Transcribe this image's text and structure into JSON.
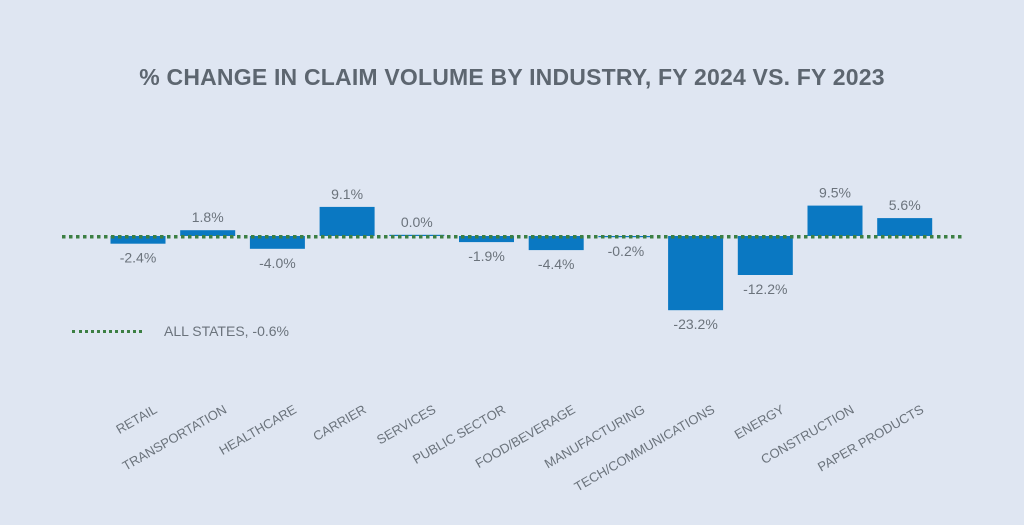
{
  "chart_data": {
    "type": "bar",
    "title": "% CHANGE IN CLAIM VOLUME BY INDUSTRY, FY 2024 VS. FY 2023",
    "categories": [
      "RETAIL",
      "TRANSPORTATION",
      "HEALTHCARE",
      "CARRIER",
      "SERVICES",
      "PUBLIC SECTOR",
      "FOOD/BEVERAGE",
      "MANUFACTURING",
      "TECH/COMMUNICATIONS",
      "ENERGY",
      "CONSTRUCTION",
      "PAPER PRODUCTS"
    ],
    "values": [
      -2.4,
      1.8,
      -4.0,
      9.1,
      0.0,
      -1.9,
      -4.4,
      -0.2,
      -23.2,
      -12.2,
      9.5,
      5.6
    ],
    "value_labels": [
      "-2.4%",
      "1.8%",
      "-4.0%",
      "9.1%",
      "0.0%",
      "-1.9%",
      "-4.4%",
      "-0.2%",
      "-23.2%",
      "-12.2%",
      "9.5%",
      "5.6%"
    ],
    "reference_line": {
      "label": "ALL STATES, -0.6%",
      "value": -0.6,
      "style": "dotted",
      "color": "#3c7f43"
    },
    "bar_color": "#0a78c2",
    "background_color": "#dfe6f2",
    "grid": false,
    "legend_position": "middle-left"
  }
}
